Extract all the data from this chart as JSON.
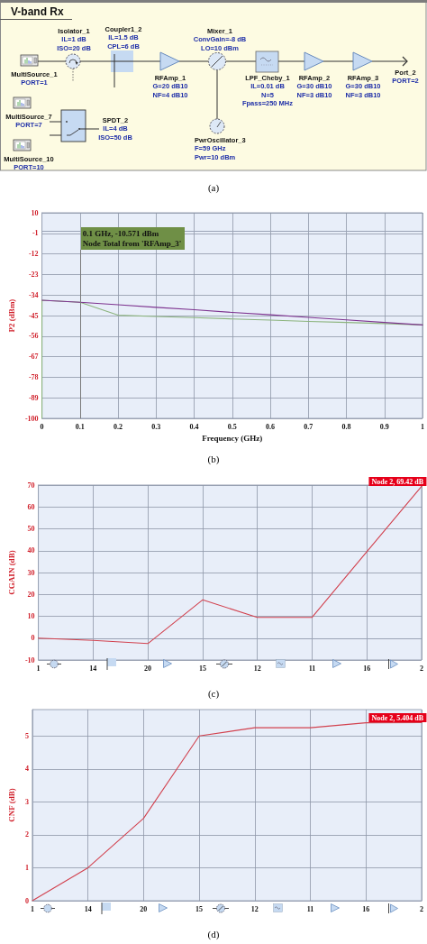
{
  "chart_data": [
    {
      "type": "other",
      "title": "V-band Rx",
      "annotations": [
        "Isolator_1\nIL=1 dB\nISO=20 dB",
        "Coupler1_2\nIL=1.5 dB\nCPL=6 dB",
        "Mixer_1\nConvGain=-8 dB\nLO=10 dBm",
        "MultiSource_1\nPORT=1",
        "RFAmp_1\nG=20 dB10\nNF=4 dB10",
        "LPF_Cheby_1\nIL=0.01 dB\nN=5\nFpass=250 MHz",
        "RFAmp_2\nG=30 dB10\nNF=3 dB10",
        "RFAmp_3\nG=30 dB10\nNF=3 dB10",
        "Port_2\nPORT=2",
        "MultiSource_7\nPORT=7",
        "SPDT_2\nIL=4 dB\nISO=50 dB",
        "MultiSource_10\nPORT=10",
        "PwrOscillator_3\nF=59 GHz\nPwr=10 dBm",
        "(a)"
      ]
    },
    {
      "type": "line",
      "xlabel": "Frequency (GHz)",
      "ylabel": "P2 (dBm)",
      "xlim": [
        0,
        1
      ],
      "ylim": [
        -100,
        10
      ],
      "xticks": [
        0,
        0.1,
        0.2,
        0.3,
        0.4,
        0.5,
        0.6,
        0.7,
        0.8,
        0.9,
        1
      ],
      "yticks": [
        -100,
        -89,
        -78,
        -67,
        -56,
        -45,
        -34,
        -23,
        -12,
        -1,
        10
      ],
      "grid": true,
      "series": [
        {
          "color": "#8cb47e",
          "x": [
            0,
            0,
            0.1,
            0.2,
            0.3,
            0.4,
            0.5,
            0.6,
            0.7,
            0.8,
            0.9,
            1
          ],
          "values": [
            -100,
            -36.8,
            -37.9,
            -44.8,
            -45.5,
            -46.1,
            -46.8,
            -47.4,
            -48.1,
            -48.7,
            -49.3,
            -50
          ]
        },
        {
          "color": "#7e3490",
          "x": [
            0,
            0.1,
            0.2,
            0.3,
            0.4,
            0.5,
            0.6,
            0.7,
            0.8,
            0.9,
            1
          ],
          "values": [
            -36.8,
            -37.9,
            -39.2,
            -40.6,
            -41.9,
            -43.3,
            -44.6,
            -46,
            -47.3,
            -48.7,
            -50
          ]
        }
      ],
      "ref_lines": [
        {
          "axis": "x",
          "value": 0.1,
          "label": "0.1 GHz, -10.571 dBm\nNode Total from 'RFAmp_3'",
          "color": "#7a7a7a"
        }
      ],
      "annotations": [
        "(b)"
      ]
    },
    {
      "type": "line",
      "ylabel": "CGAIN (dB)",
      "categories": [
        "1",
        "14",
        "20",
        "15",
        "12",
        "11",
        "16",
        "2"
      ],
      "values": [
        0,
        -1,
        -2.5,
        17.5,
        9.5,
        9.5,
        39.5,
        69.42
      ],
      "color": "#d2424f",
      "ylim": [
        -10,
        70
      ],
      "yticks": [
        -10,
        0,
        10,
        20,
        30,
        40,
        50,
        60,
        70
      ],
      "grid": true,
      "annotations": [
        {
          "text": "Node 2, 69.42 dB",
          "x": "2",
          "y": 69.42
        },
        "(c)"
      ]
    },
    {
      "type": "line",
      "ylabel": "CNF (dB)",
      "categories": [
        "1",
        "14",
        "20",
        "15",
        "12",
        "11",
        "16",
        "2"
      ],
      "values": [
        0,
        1,
        2.5,
        5,
        5.25,
        5.25,
        5.4,
        5.404
      ],
      "color": "#d2424f",
      "ylim": [
        0,
        5.8
      ],
      "yticks": [
        0,
        1,
        2,
        3,
        4,
        5
      ],
      "grid": true,
      "annotations": [
        {
          "text": "Node 2, 5.404 dB",
          "x": "2",
          "y": 5.404
        },
        "(d)"
      ]
    }
  ]
}
